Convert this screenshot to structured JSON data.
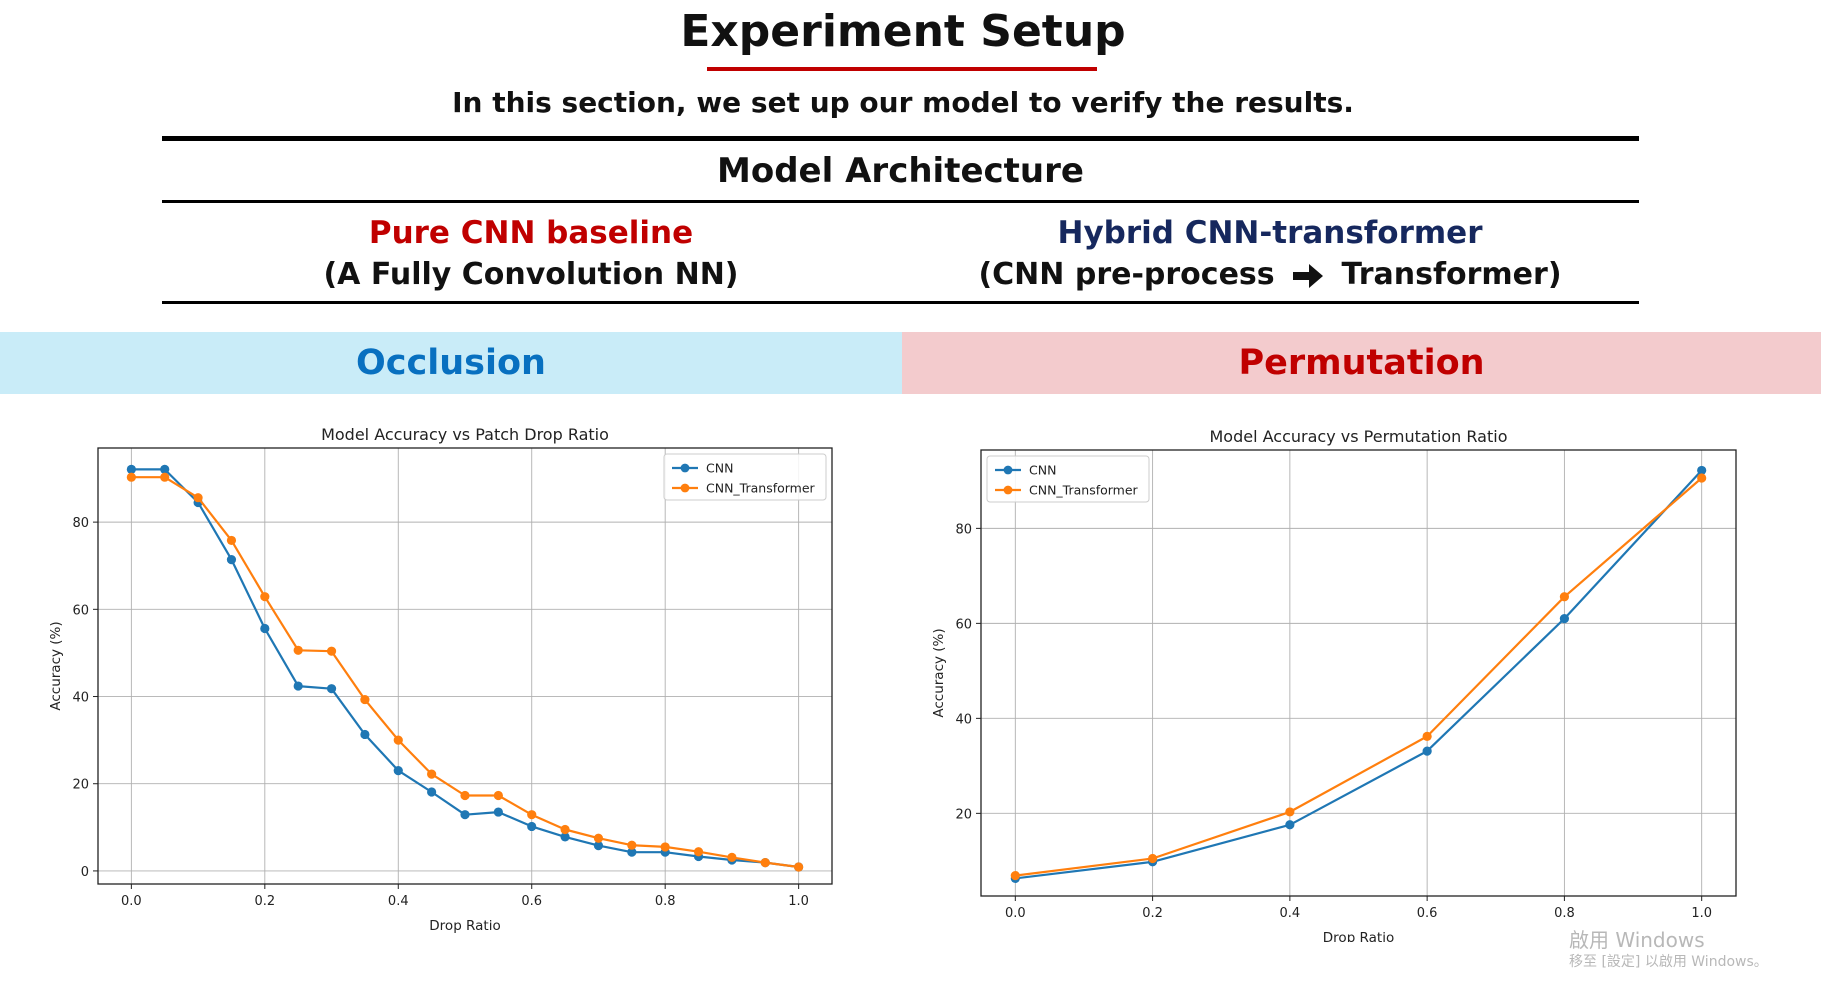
{
  "slide": {
    "title": "Experiment Setup",
    "subtitle": "In this section, we set up our model to verify the results.",
    "architecture_title": "Model Architecture",
    "left_model": {
      "heading": "Pure CNN baseline",
      "detail": "(A Fully Convolution NN)"
    },
    "right_model": {
      "heading": "Hybrid CNN-transformer",
      "detail_before": "(CNN pre-process",
      "detail_after": "Transformer)"
    },
    "banner_left": "Occlusion",
    "banner_right": "Permutation",
    "colors": {
      "title_underline": "#c00000",
      "left_heading": "#c00000",
      "right_heading": "#16285e",
      "banner_left_bg": "#c9ecf8",
      "banner_left_text": "#0870c0",
      "banner_right_bg": "#f3cbcd",
      "banner_right_text": "#c00000",
      "cnn": "#1f77b4",
      "cnn_transformer": "#ff7f0e"
    },
    "watermark": {
      "line1": "啟用 Windows",
      "line2": "移至 [設定] 以啟用 Windows。"
    }
  },
  "chart_data": [
    {
      "type": "line",
      "title": "Model Accuracy vs Patch Drop Ratio",
      "xlabel": "Drop Ratio",
      "ylabel": "Accuracy (%)",
      "xlim": [
        -0.05,
        1.05
      ],
      "ylim": [
        -3,
        97
      ],
      "xticks": [
        0.0,
        0.2,
        0.4,
        0.6,
        0.8,
        1.0
      ],
      "xtick_labels": [
        "0.0",
        "0.2",
        "0.4",
        "0.6",
        "0.8",
        "1.0"
      ],
      "yticks": [
        0,
        20,
        40,
        60,
        80
      ],
      "ytick_labels": [
        "0",
        "20",
        "40",
        "60",
        "80"
      ],
      "grid": true,
      "legend_position": "top-right",
      "x": [
        0.0,
        0.05,
        0.1,
        0.15,
        0.2,
        0.25,
        0.3,
        0.35,
        0.4,
        0.45,
        0.5,
        0.55,
        0.6,
        0.65,
        0.7,
        0.75,
        0.8,
        0.85,
        0.9,
        0.95,
        1.0
      ],
      "series": [
        {
          "name": "CNN",
          "color": "#1f77b4",
          "values": [
            92.1,
            92.1,
            84.5,
            71.4,
            55.6,
            42.4,
            41.8,
            31.3,
            23.0,
            18.1,
            12.9,
            13.5,
            10.2,
            7.8,
            5.8,
            4.3,
            4.3,
            3.3,
            2.5,
            1.9,
            0.9
          ]
        },
        {
          "name": "CNN_Transformer",
          "color": "#ff7f0e",
          "values": [
            90.3,
            90.3,
            85.6,
            75.8,
            62.9,
            50.6,
            50.4,
            39.3,
            30.0,
            22.2,
            17.3,
            17.3,
            12.9,
            9.5,
            7.5,
            5.9,
            5.5,
            4.4,
            3.1,
            1.9,
            0.9
          ]
        }
      ]
    },
    {
      "type": "line",
      "title": "Model Accuracy vs Permutation Ratio",
      "xlabel": "Drop Ratio",
      "ylabel": "Accuracy (%)",
      "xlim": [
        -0.05,
        1.05
      ],
      "ylim": [
        2.6,
        96.5
      ],
      "xticks": [
        0.0,
        0.2,
        0.4,
        0.6,
        0.8,
        1.0
      ],
      "xtick_labels": [
        "0.0",
        "0.2",
        "0.4",
        "0.6",
        "0.8",
        "1.0"
      ],
      "yticks": [
        20,
        40,
        60,
        80
      ],
      "ytick_labels": [
        "20",
        "40",
        "60",
        "80"
      ],
      "grid": true,
      "legend_position": "top-left",
      "x": [
        0.0,
        0.2,
        0.4,
        0.6,
        0.8,
        1.0
      ],
      "series": [
        {
          "name": "CNN",
          "color": "#1f77b4",
          "values": [
            6.3,
            9.8,
            17.6,
            33.1,
            61.0,
            92.2
          ]
        },
        {
          "name": "CNN_Transformer",
          "color": "#ff7f0e",
          "values": [
            6.9,
            10.5,
            20.3,
            36.2,
            65.6,
            90.6
          ]
        }
      ]
    }
  ]
}
